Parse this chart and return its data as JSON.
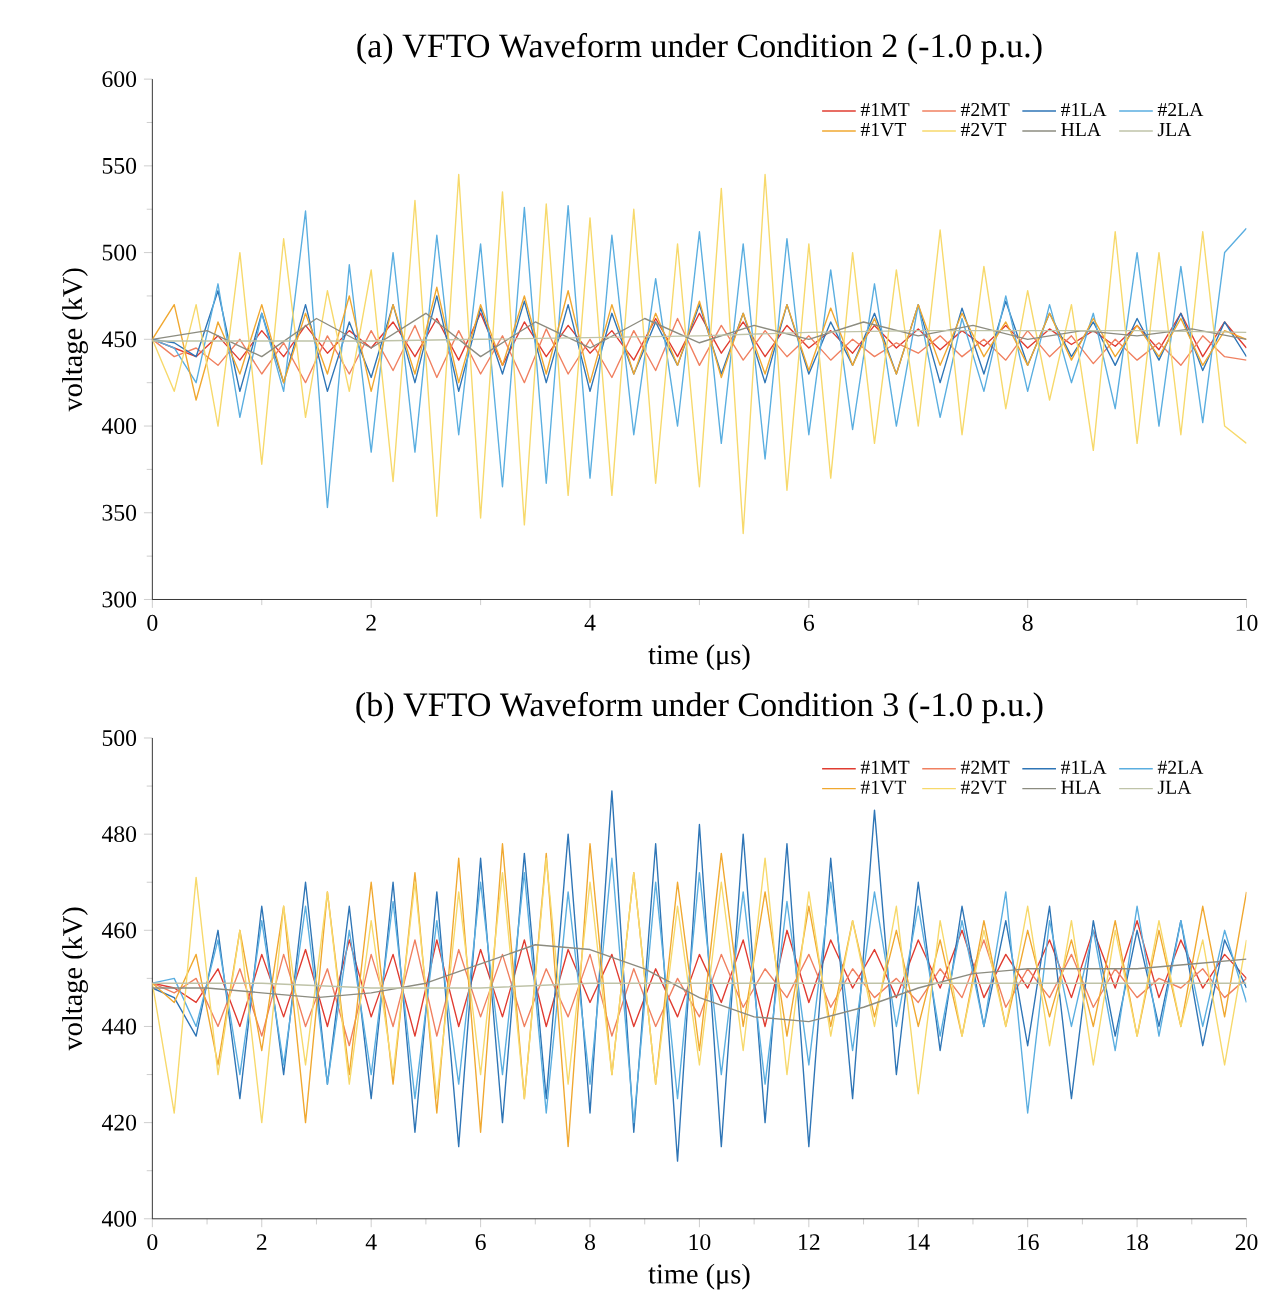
{
  "chart_data": [
    {
      "type": "line",
      "title": "(a) VFTO Waveform under Condition 2 (-1.0 p.u.)",
      "xlabel": "time (μs)",
      "ylabel": "voltage (kV)",
      "xlim": [
        0,
        10
      ],
      "ylim": [
        300,
        600
      ],
      "xticks": [
        0,
        2,
        4,
        6,
        8,
        10
      ],
      "yticks": [
        300,
        350,
        400,
        450,
        500,
        550,
        600
      ],
      "legend": "top right",
      "x": [
        0,
        0.2,
        0.4,
        0.6,
        0.8,
        1.0,
        1.2,
        1.4,
        1.6,
        1.8,
        2.0,
        2.2,
        2.4,
        2.6,
        2.8,
        3.0,
        3.2,
        3.4,
        3.6,
        3.8,
        4.0,
        4.2,
        4.4,
        4.6,
        4.8,
        5.0,
        5.2,
        5.4,
        5.6,
        5.8,
        6.0,
        6.2,
        6.4,
        6.6,
        6.8,
        7.0,
        7.2,
        7.4,
        7.6,
        7.8,
        8.0,
        8.2,
        8.4,
        8.6,
        8.8,
        9.0,
        9.2,
        9.4,
        9.6,
        9.8,
        10.0
      ],
      "series": [
        {
          "name": "#1MT",
          "color": "#e03c31",
          "values": [
            450,
            445,
            440,
            452,
            438,
            455,
            440,
            458,
            442,
            455,
            445,
            460,
            440,
            462,
            438,
            465,
            435,
            460,
            440,
            458,
            442,
            455,
            438,
            462,
            440,
            465,
            442,
            460,
            440,
            458,
            445,
            455,
            442,
            458,
            445,
            456,
            444,
            455,
            446,
            458,
            445,
            456,
            447,
            455,
            446,
            458,
            444,
            465,
            440,
            460,
            445
          ]
        },
        {
          "name": "#2MT",
          "color": "#f08060",
          "values": [
            450,
            440,
            445,
            435,
            450,
            430,
            448,
            425,
            452,
            430,
            455,
            432,
            458,
            428,
            455,
            430,
            452,
            425,
            456,
            430,
            450,
            428,
            455,
            432,
            462,
            435,
            458,
            438,
            455,
            440,
            452,
            438,
            450,
            440,
            448,
            442,
            452,
            440,
            450,
            438,
            455,
            440,
            452,
            436,
            450,
            438,
            448,
            435,
            452,
            440,
            438
          ]
        },
        {
          "name": "#1LA",
          "color": "#2e75b6",
          "values": [
            450,
            448,
            440,
            478,
            420,
            465,
            425,
            470,
            420,
            460,
            428,
            470,
            425,
            475,
            420,
            468,
            430,
            472,
            425,
            470,
            420,
            465,
            430,
            460,
            435,
            470,
            430,
            465,
            425,
            470,
            430,
            460,
            435,
            465,
            430,
            470,
            425,
            468,
            430,
            472,
            435,
            465,
            440,
            460,
            435,
            462,
            438,
            465,
            432,
            460,
            440
          ]
        },
        {
          "name": "#2LA",
          "color": "#5aaee0",
          "values": [
            450,
            445,
            425,
            482,
            405,
            465,
            420,
            524,
            353,
            493,
            385,
            500,
            385,
            510,
            395,
            505,
            365,
            526,
            367,
            527,
            370,
            510,
            395,
            485,
            400,
            512,
            390,
            505,
            381,
            508,
            395,
            490,
            398,
            482,
            400,
            470,
            405,
            462,
            420,
            475,
            420,
            470,
            425,
            465,
            410,
            500,
            400,
            492,
            402,
            500,
            514
          ]
        },
        {
          "name": "#1VT",
          "color": "#f0a830",
          "values": [
            450,
            470,
            415,
            460,
            430,
            470,
            425,
            465,
            430,
            475,
            420,
            470,
            430,
            480,
            425,
            470,
            435,
            475,
            430,
            478,
            425,
            470,
            430,
            465,
            435,
            472,
            428,
            465,
            430,
            470,
            432,
            468,
            435,
            462,
            430,
            470,
            435,
            465,
            440,
            460,
            435,
            465,
            438,
            462,
            440,
            458,
            440,
            462,
            435,
            455,
            450
          ]
        },
        {
          "name": "#2VT",
          "color": "#f7d96b",
          "values": [
            450,
            420,
            470,
            400,
            500,
            378,
            508,
            405,
            478,
            420,
            490,
            368,
            530,
            348,
            545,
            347,
            535,
            343,
            528,
            360,
            520,
            360,
            525,
            367,
            505,
            365,
            537,
            338,
            545,
            363,
            505,
            370,
            500,
            390,
            490,
            400,
            513,
            395,
            492,
            410,
            478,
            415,
            470,
            386,
            512,
            390,
            500,
            395,
            512,
            400,
            390
          ]
        },
        {
          "name": "HLA",
          "color": "#8c8c80",
          "x": [
            0,
            0.5,
            1,
            1.5,
            2,
            2.5,
            3,
            3.5,
            4,
            4.5,
            5,
            5.5,
            6,
            6.5,
            7,
            7.5,
            8,
            8.5,
            9,
            9.5,
            10
          ],
          "values": [
            450,
            455,
            440,
            462,
            445,
            465,
            440,
            460,
            445,
            462,
            448,
            458,
            450,
            460,
            452,
            458,
            450,
            455,
            452,
            456,
            450
          ]
        },
        {
          "name": "JLA",
          "color": "#bfc3a8",
          "x": [
            0,
            1,
            2,
            3,
            4,
            5,
            6,
            7,
            8,
            9,
            10
          ],
          "values": [
            449,
            449,
            449,
            450,
            451,
            452,
            454,
            455,
            455,
            455,
            454
          ]
        }
      ]
    },
    {
      "type": "line",
      "title": "(b) VFTO Waveform under Condition 3 (-1.0 p.u.)",
      "xlabel": "time (μs)",
      "ylabel": "voltage (kV)",
      "xlim": [
        0,
        20
      ],
      "ylim": [
        400,
        500
      ],
      "xticks": [
        0,
        2,
        4,
        6,
        8,
        10,
        12,
        14,
        16,
        18,
        20
      ],
      "yticks": [
        400,
        420,
        440,
        460,
        480,
        500
      ],
      "legend": "top right",
      "x": [
        0,
        0.4,
        0.8,
        1.2,
        1.6,
        2.0,
        2.4,
        2.8,
        3.2,
        3.6,
        4.0,
        4.4,
        4.8,
        5.2,
        5.6,
        6.0,
        6.4,
        6.8,
        7.2,
        7.6,
        8.0,
        8.4,
        8.8,
        9.2,
        9.6,
        10.0,
        10.4,
        10.8,
        11.2,
        11.6,
        12.0,
        12.4,
        12.8,
        13.2,
        13.6,
        14.0,
        14.4,
        14.8,
        15.2,
        15.6,
        16.0,
        16.4,
        16.8,
        17.2,
        17.6,
        18.0,
        18.4,
        18.8,
        19.2,
        19.6,
        20.0
      ],
      "series": [
        {
          "name": "#1MT",
          "color": "#e03c31",
          "values": [
            449,
            448,
            445,
            452,
            440,
            455,
            442,
            456,
            440,
            458,
            442,
            455,
            438,
            458,
            440,
            456,
            442,
            458,
            440,
            456,
            445,
            455,
            440,
            452,
            442,
            455,
            445,
            458,
            440,
            460,
            445,
            458,
            448,
            456,
            446,
            458,
            448,
            460,
            446,
            455,
            448,
            458,
            446,
            460,
            448,
            462,
            446,
            458,
            448,
            455,
            450
          ]
        },
        {
          "name": "#2MT",
          "color": "#f08060",
          "values": [
            449,
            447,
            450,
            440,
            452,
            438,
            455,
            440,
            452,
            436,
            455,
            440,
            458,
            438,
            456,
            442,
            455,
            440,
            452,
            442,
            455,
            438,
            452,
            440,
            450,
            442,
            455,
            444,
            452,
            446,
            455,
            444,
            452,
            446,
            450,
            445,
            452,
            446,
            458,
            444,
            452,
            446,
            455,
            444,
            452,
            446,
            450,
            448,
            452,
            446,
            450
          ]
        },
        {
          "name": "#1LA",
          "color": "#2e75b6",
          "values": [
            448,
            446,
            438,
            460,
            425,
            465,
            430,
            470,
            428,
            465,
            425,
            470,
            418,
            468,
            415,
            475,
            420,
            476,
            425,
            480,
            422,
            489,
            418,
            478,
            412,
            482,
            415,
            480,
            420,
            478,
            415,
            475,
            425,
            485,
            430,
            470,
            435,
            465,
            440,
            462,
            436,
            465,
            425,
            462,
            438,
            460,
            440,
            462,
            436,
            458,
            448
          ]
        },
        {
          "name": "#2LA",
          "color": "#5aaee0",
          "values": [
            449,
            450,
            440,
            458,
            430,
            462,
            432,
            465,
            428,
            460,
            430,
            466,
            425,
            462,
            428,
            470,
            430,
            472,
            422,
            468,
            428,
            475,
            420,
            470,
            425,
            472,
            430,
            468,
            428,
            466,
            432,
            470,
            435,
            468,
            440,
            465,
            438,
            462,
            440,
            468,
            422,
            462,
            440,
            460,
            435,
            465,
            438,
            462,
            440,
            460,
            445
          ]
        },
        {
          "name": "#1VT",
          "color": "#f0a830",
          "values": [
            449,
            445,
            455,
            432,
            460,
            435,
            465,
            420,
            468,
            430,
            470,
            428,
            472,
            422,
            475,
            418,
            478,
            425,
            476,
            415,
            478,
            430,
            472,
            428,
            470,
            435,
            476,
            440,
            468,
            438,
            465,
            440,
            462,
            442,
            460,
            440,
            458,
            438,
            462,
            440,
            460,
            442,
            458,
            440,
            462,
            438,
            460,
            440,
            465,
            442,
            468
          ]
        },
        {
          "name": "#2VT",
          "color": "#f7d96b",
          "values": [
            449,
            422,
            471,
            430,
            460,
            420,
            465,
            432,
            468,
            428,
            462,
            430,
            470,
            425,
            468,
            430,
            472,
            425,
            475,
            428,
            470,
            430,
            472,
            428,
            465,
            432,
            470,
            435,
            475,
            430,
            468,
            438,
            462,
            440,
            465,
            426,
            462,
            438,
            460,
            440,
            465,
            436,
            462,
            432,
            460,
            438,
            462,
            440,
            458,
            432,
            458
          ]
        },
        {
          "name": "HLA",
          "color": "#8c8c80",
          "x": [
            0,
            1,
            2,
            3,
            4,
            5,
            6,
            7,
            8,
            9,
            10,
            11,
            12,
            13,
            14,
            15,
            16,
            17,
            18,
            19,
            20
          ],
          "values": [
            448,
            448,
            447,
            446,
            447,
            449,
            453,
            457,
            456,
            452,
            446,
            442,
            441,
            444,
            448,
            451,
            452,
            452,
            452,
            453,
            454
          ]
        },
        {
          "name": "JLA",
          "color": "#bfc3a8",
          "x": [
            0,
            2,
            4,
            6,
            8,
            10,
            12,
            14,
            16,
            18,
            20
          ],
          "values": [
            449,
            449,
            448,
            448,
            449,
            449,
            449,
            449,
            449,
            449,
            449
          ]
        }
      ]
    }
  ]
}
